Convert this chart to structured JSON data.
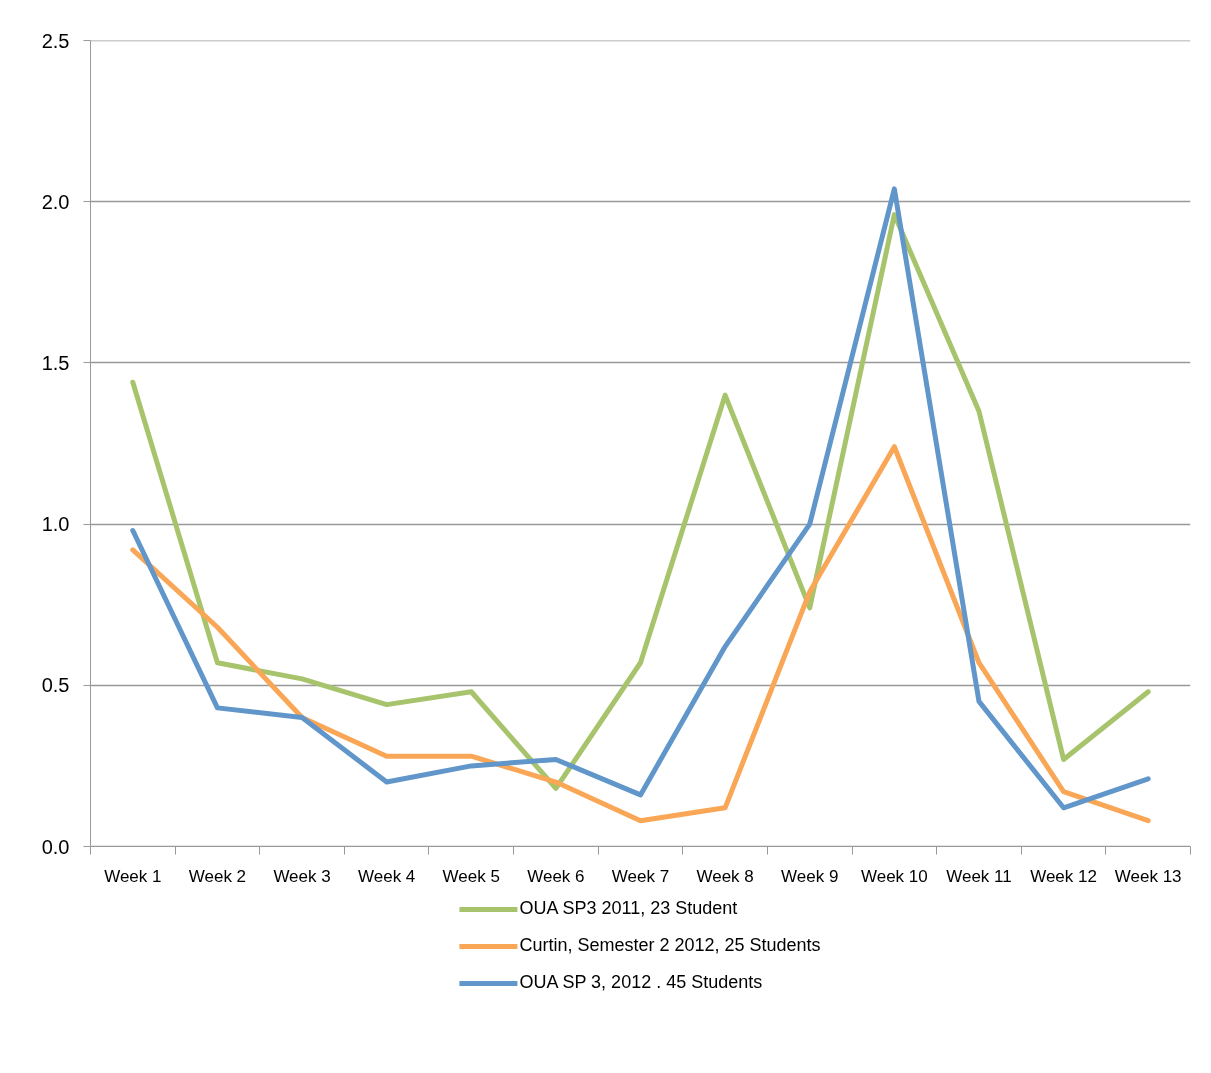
{
  "chart_data": {
    "type": "line",
    "categories": [
      "Week 1",
      "Week 2",
      "Week 3",
      "Week 4",
      "Week 5",
      "Week 6",
      "Week 7",
      "Week 8",
      "Week 9",
      "Week 10",
      "Week 11",
      "Week 12",
      "Week 13"
    ],
    "ylim": [
      0,
      2.5
    ],
    "yticks": [
      {
        "value": 0,
        "label": "0.0"
      },
      0.5,
      {
        "value": 1,
        "label": "1.0"
      },
      1.5,
      {
        "value": 2,
        "label": "2.0"
      },
      2.5
    ],
    "grid": "y",
    "legend": "bottom",
    "line_style": "solid",
    "marker": "none",
    "series": [
      {
        "name": "OUA SP3 2011, 23 Student",
        "color": "#a7c46c",
        "values": [
          1.44,
          0.57,
          0.52,
          0.44,
          0.48,
          0.18,
          0.57,
          1.4,
          0.74,
          1.96,
          1.35,
          0.27,
          0.48
        ]
      },
      {
        "name": "Curtin, Semester 2 2012, 25 Students",
        "color": "#f9a656",
        "values": [
          0.92,
          0.68,
          0.4,
          0.28,
          0.28,
          0.2,
          0.08,
          0.12,
          0.79,
          1.24,
          0.57,
          0.17,
          0.08
        ]
      },
      {
        "name": "OUA SP 3, 2012 . 45 Students",
        "color": "#6096c9",
        "values": [
          0.98,
          0.43,
          0.4,
          0.2,
          0.25,
          0.27,
          0.16,
          0.62,
          1.0,
          2.04,
          0.45,
          0.12,
          0.21
        ]
      }
    ]
  }
}
